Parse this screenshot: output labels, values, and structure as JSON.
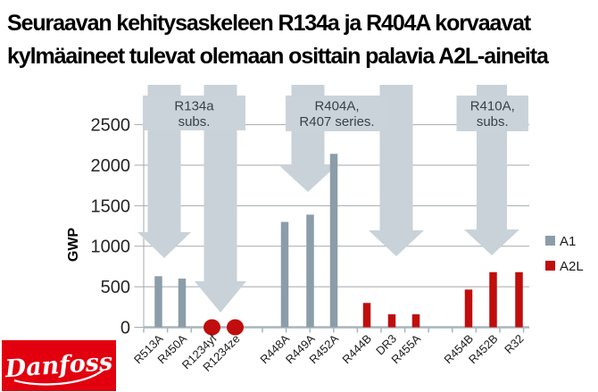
{
  "slide": {
    "title_line1": "Seuraavan kehitysaskeleen R134a ja R404A korvaavat",
    "title_line2": "kylmäaineet tulevat olemaan osittain palavia A2L-aineita"
  },
  "logo": {
    "text": "Danfoss",
    "color": "#E2000F"
  },
  "chart_data": {
    "type": "bar",
    "title": "",
    "xlabel": "",
    "ylabel": "GWP",
    "ylim": [
      0,
      2500
    ],
    "yticks": [
      0,
      500,
      1000,
      1500,
      2000,
      2500
    ],
    "grid": true,
    "legend_position": "right",
    "legend": [
      {
        "name": "A1",
        "color": "#8B9DA9"
      },
      {
        "name": "A2L",
        "color": "#C00D0D"
      }
    ],
    "points": [
      {
        "label": "R513A",
        "series": "A1",
        "value": 630,
        "marker": "bar"
      },
      {
        "label": "R450A",
        "series": "A1",
        "value": 600,
        "marker": "bar"
      },
      {
        "label": "R1234yf",
        "series": "A2L",
        "value": 0,
        "marker": "dot"
      },
      {
        "label": "R1234ze",
        "series": "A2L",
        "value": 0,
        "marker": "dot"
      },
      {
        "label": "R448A",
        "series": "A1",
        "value": 1300,
        "marker": "bar"
      },
      {
        "label": "R449A",
        "series": "A1",
        "value": 1390,
        "marker": "bar"
      },
      {
        "label": "R452A",
        "series": "A1",
        "value": 2140,
        "marker": "bar"
      },
      {
        "label": "R444B",
        "series": "A2L",
        "value": 300,
        "marker": "bar"
      },
      {
        "label": "DR3",
        "series": "A2L",
        "value": 160,
        "marker": "bar"
      },
      {
        "label": "R455A",
        "series": "A2L",
        "value": 160,
        "marker": "bar"
      },
      {
        "label": "R454B",
        "series": "A2L",
        "value": 465,
        "marker": "bar"
      },
      {
        "label": "R452B",
        "series": "A2L",
        "value": 680,
        "marker": "bar"
      },
      {
        "label": "R32",
        "series": "A2L",
        "value": 680,
        "marker": "bar"
      }
    ],
    "annotations": [
      {
        "lines": [
          "R134a",
          "subs."
        ]
      },
      {
        "lines": [
          "R404A,",
          "R407 series."
        ]
      },
      {
        "lines": [
          "R410A,",
          "subs."
        ]
      }
    ],
    "colors": {
      "arrow": "#C9D2D9",
      "annotation_box": "#CBD3DA",
      "annotation_text": "#3A4148",
      "grid": "#A3A9AD",
      "axis": "#A9B5BC",
      "tick_text": "#262626"
    }
  }
}
